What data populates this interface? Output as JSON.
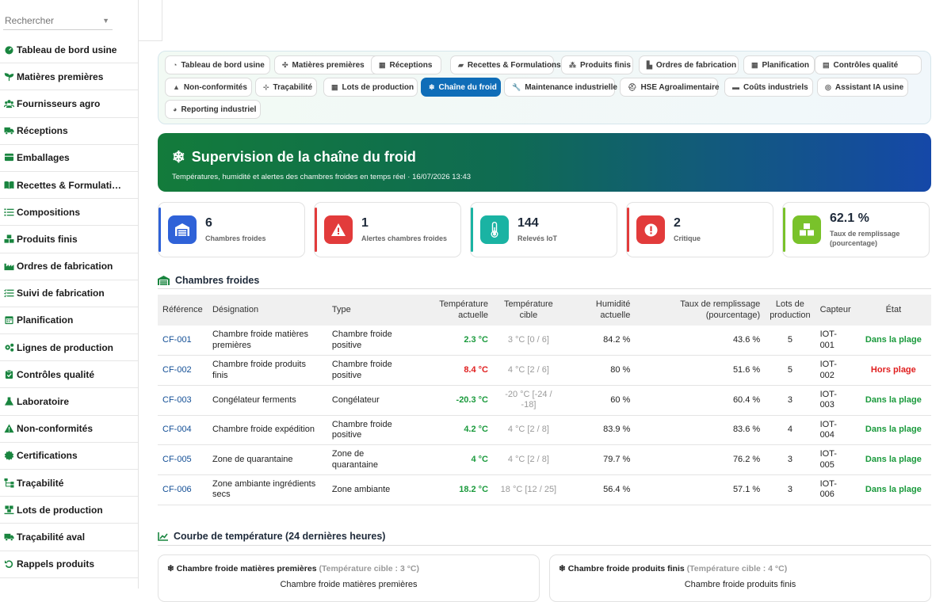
{
  "sidebar": {
    "search_placeholder": "Rechercher",
    "items": [
      {
        "label": "Tableau de bord usine",
        "icon": "dashboard-icon"
      },
      {
        "label": "Matières premières",
        "icon": "seedling-icon"
      },
      {
        "label": "Fournisseurs agro",
        "icon": "users-icon"
      },
      {
        "label": "Réceptions",
        "icon": "truck-icon"
      },
      {
        "label": "Emballages",
        "icon": "box-icon"
      },
      {
        "label": "Recettes & Formulati…",
        "icon": "book-icon"
      },
      {
        "label": "Compositions",
        "icon": "list-icon"
      },
      {
        "label": "Produits finis",
        "icon": "boxes-icon"
      },
      {
        "label": "Ordres de fabrication",
        "icon": "industry-icon"
      },
      {
        "label": "Suivi de fabrication",
        "icon": "list-check-icon"
      },
      {
        "label": "Planification",
        "icon": "calendar-icon"
      },
      {
        "label": "Lignes de production",
        "icon": "cogs-icon"
      },
      {
        "label": "Contrôles qualité",
        "icon": "clipboard-check-icon"
      },
      {
        "label": "Laboratoire",
        "icon": "flask-icon"
      },
      {
        "label": "Non-conformités",
        "icon": "warning-icon"
      },
      {
        "label": "Certifications",
        "icon": "certificate-icon"
      },
      {
        "label": "Traçabilité",
        "icon": "sitemap-icon"
      },
      {
        "label": "Lots de production",
        "icon": "pallet-icon"
      },
      {
        "label": "Traçabilité aval",
        "icon": "shipping-icon"
      },
      {
        "label": "Rappels produits",
        "icon": "undo-icon"
      }
    ]
  },
  "tabs": [
    {
      "label": "Tableau de bord usine",
      "icon": "dashboard-icon"
    },
    {
      "label": "Matières premières",
      "icon": "seedling-icon"
    },
    {
      "label": "Réceptions",
      "icon": "truck-icon"
    },
    {
      "label": "Recettes & Formulations",
      "icon": "book-icon"
    },
    {
      "label": "Produits finis",
      "icon": "boxes-icon"
    },
    {
      "label": "Ordres de fabrication",
      "icon": "industry-icon"
    },
    {
      "label": "Planification",
      "icon": "calendar-icon"
    },
    {
      "label": "Contrôles qualité",
      "icon": "clipboard-check-icon"
    },
    {
      "label": "Non-conformités",
      "icon": "warning-icon"
    },
    {
      "label": "Traçabilité",
      "icon": "sitemap-icon"
    },
    {
      "label": "Lots de production",
      "icon": "pallet-icon"
    },
    {
      "label": "Chaîne du froid",
      "icon": "snowflake-icon",
      "active": true
    },
    {
      "label": "Maintenance industrielle",
      "icon": "wrench-icon"
    },
    {
      "label": "HSE Agroalimentaire",
      "icon": "helmet-icon"
    },
    {
      "label": "Coûts industriels",
      "icon": "money-icon"
    },
    {
      "label": "Assistant IA usine",
      "icon": "robot-icon"
    },
    {
      "label": "Reporting industriel",
      "icon": "chart-pie-icon"
    }
  ],
  "hero": {
    "title": "Supervision de la chaîne du froid",
    "subtitle": "Températures, humidité et alertes des chambres froides en temps réel · 16/07/2026 13:43",
    "icon": "snowflake-icon"
  },
  "kpis": [
    {
      "value": "6",
      "label": "Chambres froides",
      "icon": "warehouse-icon",
      "color": "#2f62d8"
    },
    {
      "value": "1",
      "label": "Alertes chambres froides",
      "icon": "warning-icon",
      "color": "#e23b3b"
    },
    {
      "value": "144",
      "label": "Relevés IoT",
      "icon": "thermometer-icon",
      "color": "#1ab3a3"
    },
    {
      "value": "2",
      "label": "Critique",
      "icon": "alert-circle-icon",
      "color": "#e23b3b"
    },
    {
      "value": "62.1 %",
      "label": "Taux de remplissage (pourcentage)",
      "icon": "boxes-icon",
      "color": "#79c22a"
    }
  ],
  "table": {
    "title": "Chambres froides",
    "headers": [
      "Référence",
      "Désignation",
      "Type",
      "Température actuelle",
      "Température cible",
      "Humidité actuelle",
      "Taux de remplissage (pourcentage)",
      "Lots de production",
      "Capteur",
      "État"
    ],
    "rows": [
      {
        "ref": "CF-001",
        "designation": "Chambre froide matières premières",
        "type": "Chambre froide positive",
        "temp": "2.3 °C",
        "temp_status": "ok",
        "target": "3 °C [0 / 6]",
        "humidity": "84.2 %",
        "fill": "43.6 %",
        "lots": "5",
        "sensor": "IOT-001",
        "state": "Dans la plage",
        "state_status": "ok"
      },
      {
        "ref": "CF-002",
        "designation": "Chambre froide produits finis",
        "type": "Chambre froide positive",
        "temp": "8.4 °C",
        "temp_status": "alert",
        "target": "4 °C [2 / 6]",
        "humidity": "80 %",
        "fill": "51.6 %",
        "lots": "5",
        "sensor": "IOT-002",
        "state": "Hors plage",
        "state_status": "alert"
      },
      {
        "ref": "CF-003",
        "designation": "Congélateur ferments",
        "type": "Congélateur",
        "temp": "-20.3 °C",
        "temp_status": "ok",
        "target": "-20 °C [-24 / -18]",
        "humidity": "60 %",
        "fill": "60.4 %",
        "lots": "3",
        "sensor": "IOT-003",
        "state": "Dans la plage",
        "state_status": "ok"
      },
      {
        "ref": "CF-004",
        "designation": "Chambre froide expédition",
        "type": "Chambre froide positive",
        "temp": "4.2 °C",
        "temp_status": "ok",
        "target": "4 °C [2 / 8]",
        "humidity": "83.9 %",
        "fill": "83.6 %",
        "lots": "4",
        "sensor": "IOT-004",
        "state": "Dans la plage",
        "state_status": "ok"
      },
      {
        "ref": "CF-005",
        "designation": "Zone de quarantaine",
        "type": "Zone de quarantaine",
        "temp": "4 °C",
        "temp_status": "ok",
        "target": "4 °C [2 / 8]",
        "humidity": "79.7 %",
        "fill": "76.2 %",
        "lots": "3",
        "sensor": "IOT-005",
        "state": "Dans la plage",
        "state_status": "ok"
      },
      {
        "ref": "CF-006",
        "designation": "Zone ambiante ingrédients secs",
        "type": "Zone ambiante",
        "temp": "18.2 °C",
        "temp_status": "ok",
        "target": "18 °C [12 / 25]",
        "humidity": "56.4 %",
        "fill": "57.1 %",
        "lots": "3",
        "sensor": "IOT-006",
        "state": "Dans la plage",
        "state_status": "ok"
      }
    ]
  },
  "curves": {
    "title": "Courbe de température (24 dernières heures)",
    "cards": [
      {
        "name": "Chambre froide matières premières",
        "target": "(Température cible : 3 °C)",
        "chart_title": "Chambre froide matières premières"
      },
      {
        "name": "Chambre froide produits finis",
        "target": "(Température cible : 4 °C)",
        "chart_title": "Chambre froide produits finis"
      }
    ]
  },
  "colors": {
    "ok": "#1a9a3c",
    "alert": "#e01e1e",
    "link": "#134f96",
    "active_tab": "#0f6db8"
  }
}
